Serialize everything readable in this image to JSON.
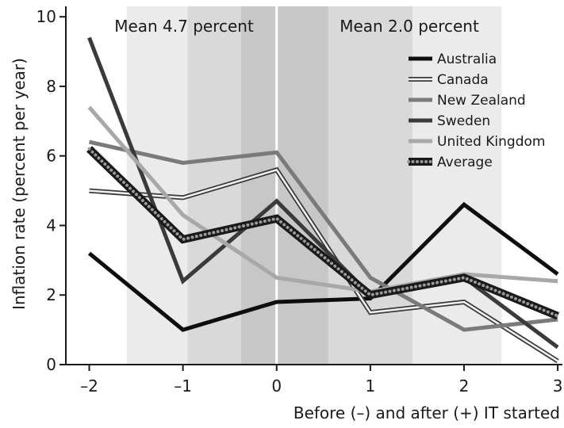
{
  "chart_data": {
    "type": "line",
    "xlabel": "Before (–) and after (+) IT started",
    "ylabel": "Inflation rate (percent per year)",
    "x": [
      -2,
      -1,
      0,
      1,
      2,
      3
    ],
    "x_tick_labels": [
      "–2",
      "–1",
      "0",
      "1",
      "2",
      "3"
    ],
    "xlim": [
      -2.25,
      3.05
    ],
    "ylim": [
      0,
      10.3
    ],
    "y_ticks": [
      0,
      2,
      4,
      6,
      8,
      10
    ],
    "grid": false,
    "legend_position": "top-right",
    "annotations": [
      {
        "text": "Mean 4.7 percent",
        "x_range": [
          -2,
          0
        ]
      },
      {
        "text": "Mean 2.0 percent",
        "x_range": [
          0,
          3
        ]
      }
    ],
    "shaded_bands": [
      {
        "x_range": [
          -1.6,
          2.4
        ],
        "color": "#ebebeb"
      },
      {
        "x_range": [
          -0.95,
          1.45
        ],
        "color": "#d9d9d9"
      },
      {
        "x_range": [
          -0.38,
          0.55
        ],
        "color": "#c7c7c7"
      }
    ],
    "series": [
      {
        "name": "Australia",
        "values": [
          3.2,
          1.0,
          1.8,
          1.9,
          4.6,
          2.6
        ],
        "style": "black"
      },
      {
        "name": "Canada",
        "values": [
          5.0,
          4.8,
          5.6,
          1.5,
          1.8,
          0.1
        ],
        "style": "double"
      },
      {
        "name": "New Zealand",
        "values": [
          6.4,
          5.8,
          6.1,
          2.5,
          1.0,
          1.3
        ],
        "style": "gray"
      },
      {
        "name": "Sweden",
        "values": [
          9.4,
          2.4,
          4.7,
          2.0,
          2.5,
          0.5
        ],
        "style": "dark"
      },
      {
        "name": "United Kingdom",
        "values": [
          7.4,
          4.3,
          2.5,
          2.1,
          2.6,
          2.4
        ],
        "style": "light"
      },
      {
        "name": "Average",
        "values": [
          6.2,
          3.6,
          4.2,
          2.0,
          2.5,
          1.4
        ],
        "style": "dotted"
      }
    ],
    "colors": {
      "australia": "#0d0d0d",
      "canada_outer": "#3a3a3a",
      "canada_inner": "#f2f2f2",
      "new_zealand": "#7a7a7a",
      "sweden": "#3a3a3a",
      "united_kingdom": "#a8a8a8",
      "average_outer": "#1a1a1a",
      "average_dots": "#9a9a9a",
      "axis": "#1a1a1a",
      "zero_line": "#ffffff"
    }
  }
}
